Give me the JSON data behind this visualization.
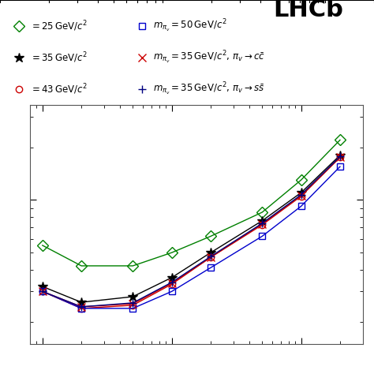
{
  "title": "LHCb",
  "background_color": "#ffffff",
  "series": [
    {
      "label": "$m_{\\pi_v} = 25\\,\\mathrm{GeV}/c^2$",
      "color": "#008000",
      "marker": "D",
      "marker_size": 7,
      "marker_facecolor": "none",
      "linestyle": "-",
      "x": [
        1,
        2,
        5,
        10,
        20,
        50,
        100,
        200
      ],
      "y": [
        0.55,
        0.42,
        0.42,
        0.5,
        0.62,
        0.85,
        1.3,
        2.2
      ]
    },
    {
      "label": "$m_{\\pi_v} = 35\\,\\mathrm{GeV}/c^2$",
      "color": "#000000",
      "marker": "*",
      "marker_size": 9,
      "marker_facecolor": "#000000",
      "linestyle": "-",
      "x": [
        1,
        2,
        5,
        10,
        20,
        50,
        100,
        200
      ],
      "y": [
        0.32,
        0.26,
        0.28,
        0.36,
        0.5,
        0.76,
        1.1,
        1.8
      ]
    },
    {
      "label": "$m_{\\pi_v} = 43\\,\\mathrm{GeV}/c^2$",
      "color": "#cc0000",
      "marker": "o",
      "marker_size": 6,
      "marker_facecolor": "none",
      "linestyle": "-",
      "x": [
        1,
        2,
        5,
        10,
        20,
        50,
        100,
        200
      ],
      "y": [
        0.3,
        0.24,
        0.25,
        0.33,
        0.47,
        0.72,
        1.05,
        1.75
      ]
    },
    {
      "label": "$m_{\\pi_v} = 50\\,\\mathrm{GeV}/c^2$",
      "color": "#0000cc",
      "marker": "s",
      "marker_size": 6,
      "marker_facecolor": "none",
      "linestyle": "-",
      "x": [
        1,
        2,
        5,
        10,
        20,
        50,
        100,
        200
      ],
      "y": [
        0.3,
        0.24,
        0.24,
        0.3,
        0.41,
        0.62,
        0.92,
        1.55
      ]
    },
    {
      "label": "$m_{\\pi_v} = 35\\,\\mathrm{GeV}/c^2,\\,\\pi_v \\to c\\bar{c}$",
      "color": "#cc0000",
      "marker": "x",
      "marker_size": 7,
      "marker_facecolor": "#cc0000",
      "linestyle": "-",
      "x": [
        1,
        2,
        5,
        10,
        20,
        50,
        100,
        200
      ],
      "y": [
        0.3,
        0.245,
        0.255,
        0.335,
        0.47,
        0.73,
        1.06,
        1.76
      ]
    },
    {
      "label": "$m_{\\pi_v} = 35\\,\\mathrm{GeV}/c^2,\\,\\pi_v \\to s\\bar{s}$",
      "color": "#000080",
      "marker": "P",
      "marker_size": 7,
      "marker_facecolor": "#000080",
      "linestyle": "-",
      "x": [
        1,
        2,
        5,
        10,
        20,
        50,
        100,
        200
      ],
      "y": [
        0.3,
        0.245,
        0.258,
        0.338,
        0.475,
        0.735,
        1.07,
        1.77
      ]
    }
  ],
  "xlim": [
    0.8,
    300
  ],
  "ylim": [
    0.15,
    3.5
  ],
  "xlabel": "",
  "ylabel": "",
  "tick_label_fontsize": 10,
  "legend_fontsize": 9,
  "lhcb_fontsize": 28
}
